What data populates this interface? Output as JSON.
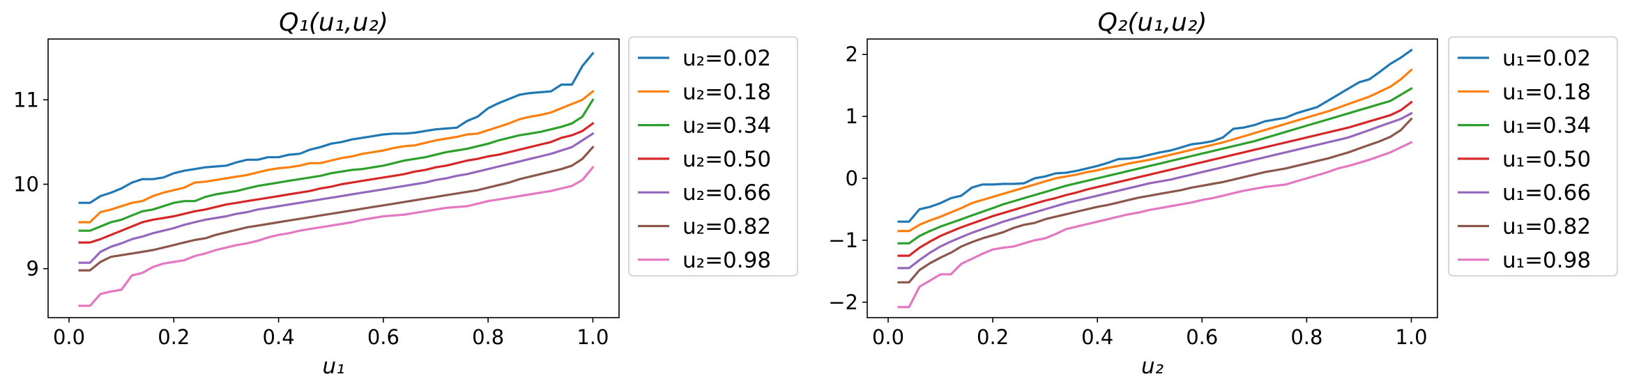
{
  "chart_data": [
    {
      "type": "line",
      "title": "Q₁(u₁,u₂)",
      "xlabel": "u₁",
      "ylabel": "",
      "xlim": [
        -0.04,
        1.05
      ],
      "ylim": [
        8.42,
        11.72
      ],
      "xticks": [
        0.0,
        0.2,
        0.4,
        0.6,
        0.8,
        1.0
      ],
      "xtick_labels": [
        "0.0",
        "0.2",
        "0.4",
        "0.6",
        "0.8",
        "1.0"
      ],
      "yticks": [
        9,
        10,
        11
      ],
      "ytick_labels": [
        "9",
        "10",
        "11"
      ],
      "grid": false,
      "legend_position": "outside-right",
      "x": [
        0.02,
        0.04,
        0.06,
        0.08,
        0.1,
        0.12,
        0.14,
        0.16,
        0.18,
        0.2,
        0.22,
        0.24,
        0.26,
        0.28,
        0.3,
        0.32,
        0.34,
        0.36,
        0.38,
        0.4,
        0.42,
        0.44,
        0.46,
        0.48,
        0.5,
        0.52,
        0.54,
        0.56,
        0.58,
        0.6,
        0.62,
        0.64,
        0.66,
        0.68,
        0.7,
        0.72,
        0.74,
        0.76,
        0.78,
        0.8,
        0.82,
        0.84,
        0.86,
        0.88,
        0.9,
        0.92,
        0.94,
        0.96,
        0.98,
        1.0
      ],
      "series": [
        {
          "name": "u₂=0.02",
          "color": "#1f77b4",
          "values": [
            9.78,
            9.78,
            9.86,
            9.9,
            9.95,
            10.02,
            10.06,
            10.06,
            10.08,
            10.13,
            10.16,
            10.18,
            10.2,
            10.21,
            10.22,
            10.26,
            10.29,
            10.29,
            10.32,
            10.32,
            10.35,
            10.36,
            10.41,
            10.44,
            10.48,
            10.5,
            10.53,
            10.55,
            10.57,
            10.59,
            10.6,
            10.6,
            10.61,
            10.63,
            10.65,
            10.66,
            10.67,
            10.75,
            10.8,
            10.9,
            10.96,
            11.01,
            11.06,
            11.08,
            11.09,
            11.1,
            11.18,
            11.18,
            11.4,
            11.55
          ]
        },
        {
          "name": "u₂=0.18",
          "color": "#ff7f0e",
          "values": [
            9.55,
            9.55,
            9.67,
            9.7,
            9.74,
            9.78,
            9.8,
            9.86,
            9.9,
            9.93,
            9.96,
            10.02,
            10.03,
            10.05,
            10.07,
            10.09,
            10.11,
            10.14,
            10.17,
            10.19,
            10.2,
            10.22,
            10.25,
            10.25,
            10.28,
            10.31,
            10.33,
            10.36,
            10.38,
            10.4,
            10.43,
            10.45,
            10.46,
            10.49,
            10.52,
            10.54,
            10.56,
            10.59,
            10.6,
            10.64,
            10.68,
            10.72,
            10.77,
            10.8,
            10.82,
            10.85,
            10.9,
            10.95,
            11.0,
            11.1
          ]
        },
        {
          "name": "u₂=0.34",
          "color": "#2ca02c",
          "values": [
            9.45,
            9.45,
            9.5,
            9.55,
            9.58,
            9.63,
            9.68,
            9.7,
            9.74,
            9.78,
            9.8,
            9.8,
            9.85,
            9.88,
            9.9,
            9.92,
            9.95,
            9.98,
            10.0,
            10.02,
            10.04,
            10.06,
            10.08,
            10.1,
            10.13,
            10.15,
            10.17,
            10.18,
            10.2,
            10.22,
            10.25,
            10.28,
            10.3,
            10.32,
            10.35,
            10.38,
            10.4,
            10.42,
            10.45,
            10.48,
            10.52,
            10.55,
            10.58,
            10.6,
            10.62,
            10.65,
            10.68,
            10.72,
            10.8,
            11.0
          ]
        },
        {
          "name": "u₂=0.50",
          "color": "#d62728",
          "values": [
            9.31,
            9.31,
            9.35,
            9.4,
            9.45,
            9.5,
            9.55,
            9.58,
            9.6,
            9.62,
            9.65,
            9.68,
            9.7,
            9.73,
            9.76,
            9.78,
            9.8,
            9.82,
            9.84,
            9.86,
            9.88,
            9.9,
            9.92,
            9.95,
            9.97,
            10.0,
            10.02,
            10.04,
            10.06,
            10.08,
            10.1,
            10.12,
            10.15,
            10.17,
            10.2,
            10.22,
            10.25,
            10.28,
            10.3,
            10.33,
            10.35,
            10.38,
            10.41,
            10.44,
            10.47,
            10.5,
            10.55,
            10.58,
            10.63,
            10.72
          ]
        },
        {
          "name": "u₂=0.66",
          "color": "#9467bd",
          "values": [
            9.07,
            9.07,
            9.2,
            9.26,
            9.3,
            9.35,
            9.38,
            9.42,
            9.45,
            9.48,
            9.52,
            9.55,
            9.58,
            9.6,
            9.62,
            9.65,
            9.67,
            9.7,
            9.72,
            9.74,
            9.76,
            9.78,
            9.8,
            9.82,
            9.84,
            9.86,
            9.88,
            9.9,
            9.92,
            9.94,
            9.96,
            9.98,
            10.0,
            10.02,
            10.05,
            10.07,
            10.1,
            10.12,
            10.15,
            10.18,
            10.21,
            10.24,
            10.27,
            10.3,
            10.33,
            10.36,
            10.4,
            10.44,
            10.52,
            10.6
          ]
        },
        {
          "name": "u₂=0.82",
          "color": "#8c564b",
          "values": [
            8.98,
            8.98,
            9.08,
            9.14,
            9.16,
            9.18,
            9.2,
            9.22,
            9.25,
            9.28,
            9.31,
            9.34,
            9.36,
            9.4,
            9.43,
            9.46,
            9.49,
            9.51,
            9.53,
            9.55,
            9.57,
            9.59,
            9.61,
            9.63,
            9.65,
            9.67,
            9.69,
            9.71,
            9.73,
            9.75,
            9.77,
            9.79,
            9.81,
            9.83,
            9.85,
            9.87,
            9.89,
            9.91,
            9.93,
            9.96,
            9.99,
            10.02,
            10.06,
            10.09,
            10.12,
            10.15,
            10.18,
            10.22,
            10.3,
            10.44
          ]
        },
        {
          "name": "u₂=0.98",
          "color": "#e377c2",
          "values": [
            8.56,
            8.56,
            8.7,
            8.73,
            8.75,
            8.92,
            8.95,
            9.02,
            9.06,
            9.08,
            9.1,
            9.15,
            9.18,
            9.22,
            9.25,
            9.28,
            9.3,
            9.33,
            9.37,
            9.4,
            9.42,
            9.45,
            9.47,
            9.49,
            9.51,
            9.53,
            9.55,
            9.58,
            9.6,
            9.62,
            9.63,
            9.64,
            9.66,
            9.68,
            9.7,
            9.72,
            9.73,
            9.74,
            9.77,
            9.8,
            9.82,
            9.84,
            9.86,
            9.88,
            9.9,
            9.92,
            9.95,
            9.98,
            10.05,
            10.2
          ]
        }
      ]
    },
    {
      "type": "line",
      "title": "Q₂(u₁,u₂)",
      "xlabel": "u₂",
      "ylabel": "",
      "xlim": [
        -0.04,
        1.05
      ],
      "ylim": [
        -2.25,
        2.25
      ],
      "xticks": [
        0.0,
        0.2,
        0.4,
        0.6,
        0.8,
        1.0
      ],
      "xtick_labels": [
        "0.0",
        "0.2",
        "0.4",
        "0.6",
        "0.8",
        "1.0"
      ],
      "yticks": [
        -2,
        -1,
        0,
        1,
        2
      ],
      "ytick_labels": [
        "−2",
        "−1",
        "0",
        "1",
        "2"
      ],
      "grid": false,
      "legend_position": "outside-right",
      "x": [
        0.02,
        0.04,
        0.06,
        0.08,
        0.1,
        0.12,
        0.14,
        0.16,
        0.18,
        0.2,
        0.22,
        0.24,
        0.26,
        0.28,
        0.3,
        0.32,
        0.34,
        0.36,
        0.38,
        0.4,
        0.42,
        0.44,
        0.46,
        0.48,
        0.5,
        0.52,
        0.54,
        0.56,
        0.58,
        0.6,
        0.62,
        0.64,
        0.66,
        0.68,
        0.7,
        0.72,
        0.74,
        0.76,
        0.78,
        0.8,
        0.82,
        0.84,
        0.86,
        0.88,
        0.9,
        0.92,
        0.94,
        0.96,
        0.98,
        1.0
      ],
      "series": [
        {
          "name": "u₁=0.02",
          "color": "#1f77b4",
          "values": [
            -0.7,
            -0.7,
            -0.5,
            -0.46,
            -0.4,
            -0.32,
            -0.28,
            -0.15,
            -0.1,
            -0.1,
            -0.09,
            -0.09,
            -0.08,
            0.0,
            0.03,
            0.08,
            0.09,
            0.12,
            0.16,
            0.2,
            0.25,
            0.31,
            0.32,
            0.34,
            0.38,
            0.42,
            0.45,
            0.5,
            0.55,
            0.57,
            0.6,
            0.66,
            0.8,
            0.82,
            0.86,
            0.92,
            0.95,
            0.98,
            1.05,
            1.1,
            1.15,
            1.25,
            1.35,
            1.45,
            1.55,
            1.6,
            1.72,
            1.85,
            1.95,
            2.07
          ]
        },
        {
          "name": "u₁=0.18",
          "color": "#ff7f0e",
          "values": [
            -0.85,
            -0.85,
            -0.75,
            -0.68,
            -0.62,
            -0.55,
            -0.48,
            -0.4,
            -0.35,
            -0.3,
            -0.25,
            -0.2,
            -0.15,
            -0.1,
            -0.05,
            0.0,
            0.03,
            0.06,
            0.1,
            0.13,
            0.17,
            0.2,
            0.24,
            0.27,
            0.3,
            0.34,
            0.38,
            0.42,
            0.46,
            0.5,
            0.54,
            0.58,
            0.63,
            0.68,
            0.73,
            0.78,
            0.83,
            0.88,
            0.93,
            0.98,
            1.03,
            1.08,
            1.14,
            1.2,
            1.26,
            1.32,
            1.4,
            1.48,
            1.6,
            1.75
          ]
        },
        {
          "name": "u₁=0.34",
          "color": "#2ca02c",
          "values": [
            -1.05,
            -1.05,
            -0.93,
            -0.85,
            -0.78,
            -0.72,
            -0.66,
            -0.6,
            -0.54,
            -0.48,
            -0.42,
            -0.37,
            -0.32,
            -0.27,
            -0.22,
            -0.17,
            -0.12,
            -0.08,
            -0.04,
            0.0,
            0.04,
            0.08,
            0.12,
            0.16,
            0.2,
            0.24,
            0.28,
            0.32,
            0.36,
            0.4,
            0.44,
            0.48,
            0.52,
            0.56,
            0.6,
            0.65,
            0.7,
            0.75,
            0.8,
            0.85,
            0.9,
            0.95,
            1.0,
            1.05,
            1.1,
            1.15,
            1.2,
            1.25,
            1.35,
            1.45
          ]
        },
        {
          "name": "u₁=0.50",
          "color": "#d62728",
          "values": [
            -1.25,
            -1.25,
            -1.12,
            -1.02,
            -0.93,
            -0.86,
            -0.79,
            -0.73,
            -0.67,
            -0.61,
            -0.56,
            -0.51,
            -0.46,
            -0.41,
            -0.36,
            -0.32,
            -0.27,
            -0.23,
            -0.18,
            -0.14,
            -0.1,
            -0.06,
            -0.02,
            0.02,
            0.06,
            0.1,
            0.14,
            0.18,
            0.22,
            0.26,
            0.3,
            0.34,
            0.38,
            0.42,
            0.46,
            0.5,
            0.54,
            0.58,
            0.62,
            0.66,
            0.7,
            0.74,
            0.78,
            0.82,
            0.87,
            0.92,
            0.97,
            1.02,
            1.1,
            1.23
          ]
        },
        {
          "name": "u₁=0.66",
          "color": "#9467bd",
          "values": [
            -1.45,
            -1.45,
            -1.32,
            -1.2,
            -1.1,
            -1.02,
            -0.95,
            -0.88,
            -0.82,
            -0.76,
            -0.7,
            -0.65,
            -0.6,
            -0.55,
            -0.5,
            -0.45,
            -0.4,
            -0.36,
            -0.32,
            -0.28,
            -0.24,
            -0.2,
            -0.16,
            -0.12,
            -0.08,
            -0.05,
            -0.02,
            0.02,
            0.06,
            0.1,
            0.14,
            0.18,
            0.22,
            0.26,
            0.3,
            0.34,
            0.38,
            0.42,
            0.46,
            0.5,
            0.54,
            0.58,
            0.62,
            0.66,
            0.72,
            0.78,
            0.84,
            0.9,
            0.96,
            1.05
          ]
        },
        {
          "name": "u₁=0.82",
          "color": "#8c564b",
          "values": [
            -1.68,
            -1.68,
            -1.48,
            -1.37,
            -1.28,
            -1.2,
            -1.1,
            -1.03,
            -0.97,
            -0.92,
            -0.87,
            -0.8,
            -0.75,
            -0.72,
            -0.66,
            -0.62,
            -0.58,
            -0.54,
            -0.5,
            -0.46,
            -0.43,
            -0.39,
            -0.35,
            -0.31,
            -0.28,
            -0.25,
            -0.22,
            -0.19,
            -0.15,
            -0.12,
            -0.09,
            -0.06,
            -0.02,
            0.02,
            0.06,
            0.1,
            0.13,
            0.16,
            0.2,
            0.24,
            0.28,
            0.32,
            0.37,
            0.42,
            0.48,
            0.54,
            0.6,
            0.67,
            0.78,
            0.96
          ]
        },
        {
          "name": "u₁=0.98",
          "color": "#e377c2",
          "values": [
            -2.08,
            -2.08,
            -1.75,
            -1.65,
            -1.55,
            -1.55,
            -1.38,
            -1.3,
            -1.22,
            -1.15,
            -1.12,
            -1.1,
            -1.05,
            -1.0,
            -0.97,
            -0.9,
            -0.82,
            -0.78,
            -0.74,
            -0.7,
            -0.66,
            -0.62,
            -0.58,
            -0.55,
            -0.51,
            -0.48,
            -0.45,
            -0.42,
            -0.39,
            -0.35,
            -0.32,
            -0.28,
            -0.24,
            -0.2,
            -0.17,
            -0.14,
            -0.12,
            -0.1,
            -0.05,
            0.0,
            0.05,
            0.1,
            0.16,
            0.2,
            0.25,
            0.3,
            0.36,
            0.42,
            0.5,
            0.58
          ]
        }
      ]
    }
  ]
}
